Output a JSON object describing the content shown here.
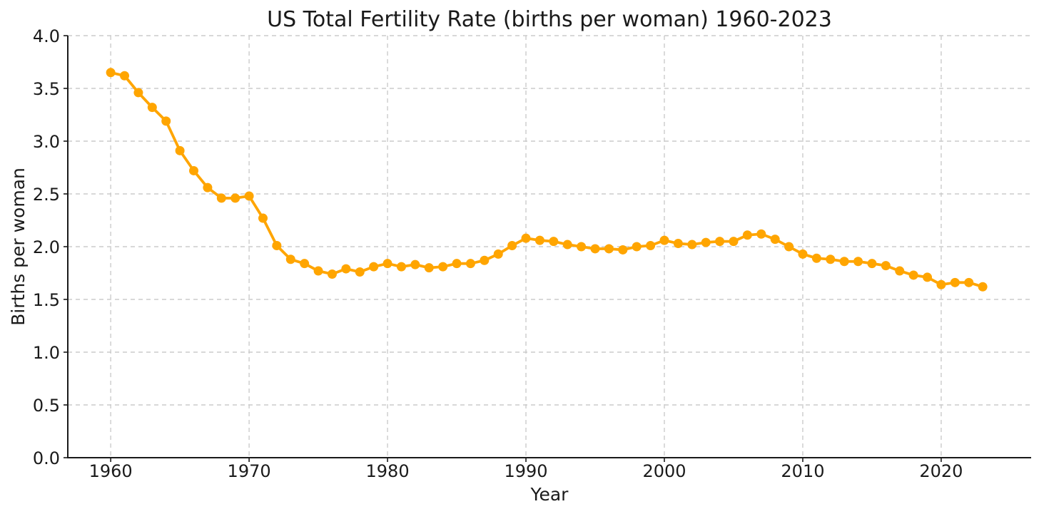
{
  "chart_data": {
    "type": "line",
    "title": "US Total Fertility Rate (births per woman) 1960-2023",
    "xlabel": "Year",
    "ylabel": "Births per woman",
    "x": [
      1960,
      1961,
      1962,
      1963,
      1964,
      1965,
      1966,
      1967,
      1968,
      1969,
      1970,
      1971,
      1972,
      1973,
      1974,
      1975,
      1976,
      1977,
      1978,
      1979,
      1980,
      1981,
      1982,
      1983,
      1984,
      1985,
      1986,
      1987,
      1988,
      1989,
      1990,
      1991,
      1992,
      1993,
      1994,
      1995,
      1996,
      1997,
      1998,
      1999,
      2000,
      2001,
      2002,
      2003,
      2004,
      2005,
      2006,
      2007,
      2008,
      2009,
      2010,
      2011,
      2012,
      2013,
      2014,
      2015,
      2016,
      2017,
      2018,
      2019,
      2020,
      2021,
      2022,
      2023
    ],
    "values": [
      3.65,
      3.62,
      3.46,
      3.32,
      3.19,
      2.91,
      2.72,
      2.56,
      2.46,
      2.46,
      2.48,
      2.27,
      2.01,
      1.88,
      1.84,
      1.77,
      1.74,
      1.79,
      1.76,
      1.81,
      1.84,
      1.81,
      1.83,
      1.8,
      1.81,
      1.84,
      1.84,
      1.87,
      1.93,
      2.01,
      2.08,
      2.06,
      2.05,
      2.02,
      2.0,
      1.98,
      1.98,
      1.97,
      2.0,
      2.01,
      2.06,
      2.03,
      2.02,
      2.04,
      2.05,
      2.05,
      2.11,
      2.12,
      2.07,
      2.0,
      1.93,
      1.89,
      1.88,
      1.86,
      1.86,
      1.84,
      1.82,
      1.77,
      1.73,
      1.71,
      1.64,
      1.66,
      1.66,
      1.62
    ],
    "line_color": "#FFA500",
    "marker": "circle",
    "grid": true,
    "grid_color": "#cbcbcb",
    "axis_color": "#1a1a1a",
    "xlim": [
      1956.9,
      2026.5
    ],
    "ylim": [
      0.0,
      4.0
    ],
    "xticks": [
      1960,
      1970,
      1980,
      1990,
      2000,
      2010,
      2020
    ],
    "xtick_labels": [
      "1960",
      "1970",
      "1980",
      "1990",
      "2000",
      "2010",
      "2020"
    ],
    "yticks": [
      0.0,
      0.5,
      1.0,
      1.5,
      2.0,
      2.5,
      3.0,
      3.5,
      4.0
    ],
    "ytick_labels": [
      "0.0",
      "0.5",
      "1.0",
      "1.5",
      "2.0",
      "2.5",
      "3.0",
      "3.5",
      "4.0"
    ],
    "legend": false
  }
}
